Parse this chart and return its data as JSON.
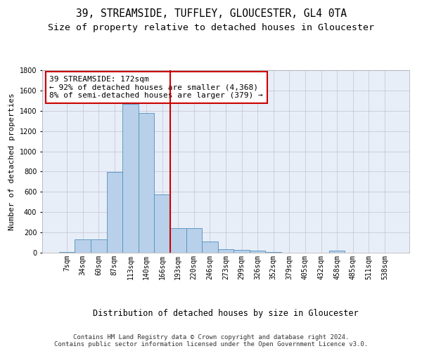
{
  "title1": "39, STREAMSIDE, TUFFLEY, GLOUCESTER, GL4 0TA",
  "title2": "Size of property relative to detached houses in Gloucester",
  "xlabel": "Distribution of detached houses by size in Gloucester",
  "ylabel": "Number of detached properties",
  "bar_values": [
    10,
    130,
    130,
    795,
    1470,
    1375,
    575,
    245,
    245,
    110,
    35,
    30,
    20,
    10,
    0,
    0,
    0,
    20,
    0,
    0,
    0
  ],
  "bin_labels": [
    "7sqm",
    "34sqm",
    "60sqm",
    "87sqm",
    "113sqm",
    "140sqm",
    "166sqm",
    "193sqm",
    "220sqm",
    "246sqm",
    "273sqm",
    "299sqm",
    "326sqm",
    "352sqm",
    "379sqm",
    "405sqm",
    "432sqm",
    "458sqm",
    "485sqm",
    "511sqm",
    "538sqm"
  ],
  "bar_color": "#b8d0ea",
  "bar_edge_color": "#5090c0",
  "grid_color": "#c8c8d8",
  "background_color": "#e8eef8",
  "vline_x": 6.5,
  "vline_color": "#cc0000",
  "annotation_text": "39 STREAMSIDE: 172sqm\n← 92% of detached houses are smaller (4,368)\n8% of semi-detached houses are larger (379) →",
  "annotation_box_color": "#ffffff",
  "annotation_box_edge": "#cc0000",
  "ylim": [
    0,
    1800
  ],
  "yticks": [
    0,
    200,
    400,
    600,
    800,
    1000,
    1200,
    1400,
    1600,
    1800
  ],
  "footnote": "Contains HM Land Registry data © Crown copyright and database right 2024.\nContains public sector information licensed under the Open Government Licence v3.0.",
  "title1_fontsize": 10.5,
  "title2_fontsize": 9.5,
  "xlabel_fontsize": 8.5,
  "ylabel_fontsize": 8,
  "tick_fontsize": 7,
  "annot_fontsize": 8,
  "footnote_fontsize": 6.5
}
